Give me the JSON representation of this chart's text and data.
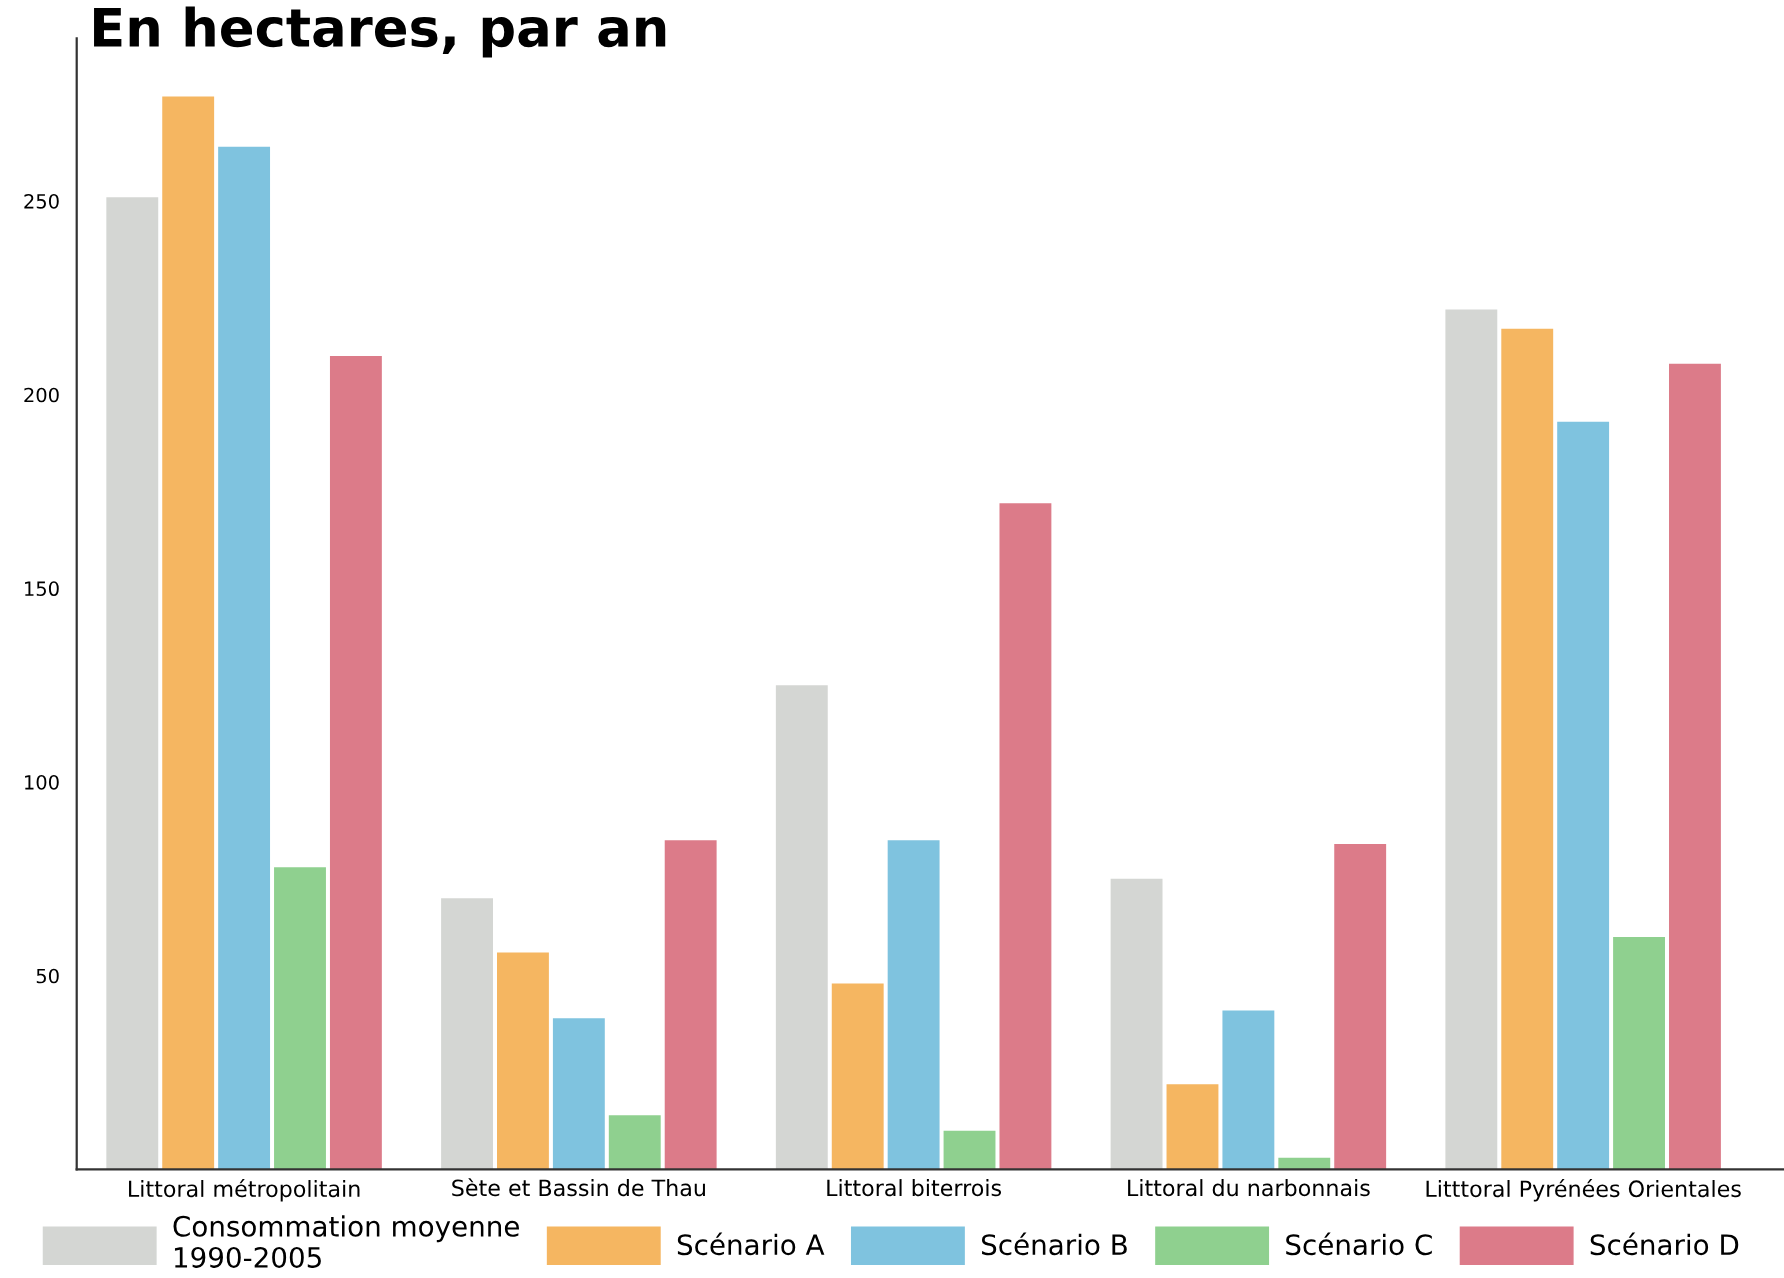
{
  "chart_data": {
    "type": "bar",
    "title": "En hectares, par an",
    "categories": [
      "Littoral métropolitain",
      "Sète et Bassin de Thau",
      "Littoral biterrois",
      "Littoral du narbonnais",
      "Litttoral Pyrénées Orientales"
    ],
    "series": [
      {
        "name": "Consommation moyenne\n1990-2005",
        "color": "#d4d6d3",
        "values": [
          251,
          70,
          125,
          75,
          222
        ]
      },
      {
        "name": "Scénario A",
        "color": "#f5b661",
        "values": [
          277,
          56,
          48,
          22,
          217
        ]
      },
      {
        "name": "Scénario B",
        "color": "#7fc3df",
        "values": [
          264,
          39,
          85,
          41,
          193
        ]
      },
      {
        "name": "Scénario C",
        "color": "#8fd08f",
        "values": [
          78,
          14,
          10,
          3,
          60
        ]
      },
      {
        "name": "Scénario D",
        "color": "#dc7b89",
        "values": [
          210,
          85,
          172,
          84,
          208
        ]
      }
    ],
    "ylim": [
      0,
      292
    ],
    "yticks": [
      50,
      100,
      150,
      200,
      250
    ],
    "grid": false,
    "legend": "bottom"
  }
}
